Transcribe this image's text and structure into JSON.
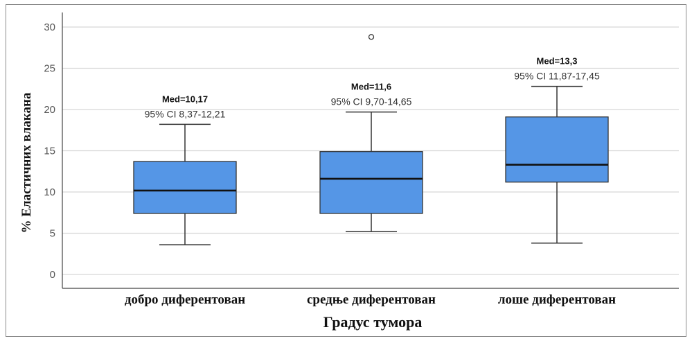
{
  "chart_data": {
    "type": "box",
    "xlabel": "Градус тумора",
    "ylabel": "% Еластичних влакана",
    "ylim": [
      0,
      31
    ],
    "yticks": [
      0,
      5,
      10,
      15,
      20,
      25,
      30
    ],
    "grid": true,
    "box_color": "#5596E6",
    "categories": [
      {
        "label": "добро диферентован",
        "whisker_low": 3.6,
        "q1": 7.4,
        "median": 10.17,
        "q3": 13.7,
        "whisker_high": 18.2,
        "outliers": [],
        "median_label": "Med=10,17",
        "ci_label": "95% CI 8,37-12,21"
      },
      {
        "label": "средње диферентован",
        "whisker_low": 5.2,
        "q1": 7.4,
        "median": 11.6,
        "q3": 14.9,
        "whisker_high": 19.7,
        "outliers": [
          28.8
        ],
        "median_label": "Med=11,6",
        "ci_label": "95% CI 9,70-14,65"
      },
      {
        "label": "лоше диферентован",
        "whisker_low": 3.8,
        "q1": 11.2,
        "median": 13.3,
        "q3": 19.1,
        "whisker_high": 22.8,
        "outliers": [],
        "median_label": "Med=13,3",
        "ci_label": "95% CI 11,87-17,45"
      }
    ]
  }
}
